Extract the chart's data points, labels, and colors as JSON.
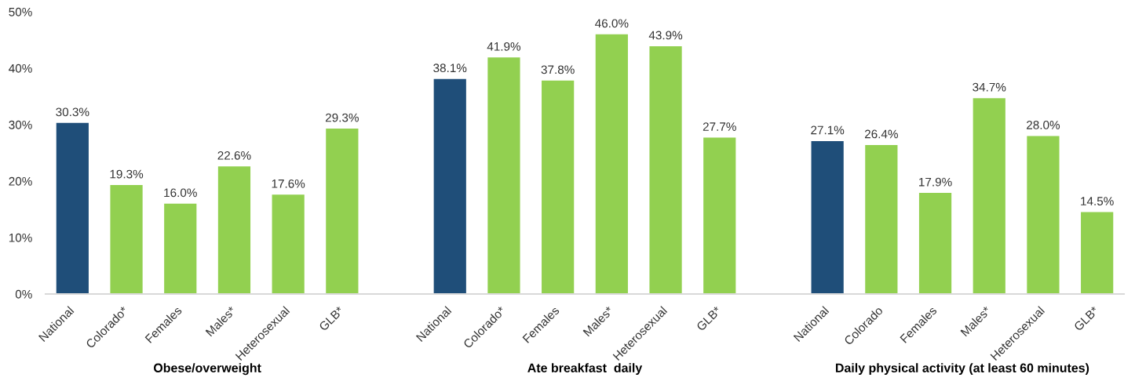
{
  "chart_data": [
    {
      "type": "bar",
      "xlabel": "Obese/overweight",
      "categories": [
        "National",
        "Colorado*",
        "Females",
        "Males*",
        "Heterosexual",
        "GLB*"
      ],
      "values": [
        30.3,
        19.3,
        16.0,
        22.6,
        17.6,
        29.3
      ],
      "colors": [
        "#1f4e79",
        "#92d050",
        "#92d050",
        "#92d050",
        "#92d050",
        "#92d050"
      ],
      "value_labels": [
        "30.3%",
        "19.3%",
        "16.0%",
        "22.6%",
        "17.6%",
        "29.3%"
      ],
      "ylim": [
        0,
        50
      ],
      "yticks": [
        {
          "value": 0,
          "label": "0%"
        },
        {
          "value": 10,
          "label": "10%"
        },
        {
          "value": 20,
          "label": "20%"
        },
        {
          "value": 30,
          "label": "30%"
        },
        {
          "value": 40,
          "label": "40%"
        },
        {
          "value": 50,
          "label": "50%"
        }
      ]
    },
    {
      "type": "bar",
      "xlabel": "Ate breakfast  daily",
      "categories": [
        "National",
        "Colorado*",
        "Females",
        "Males*",
        "Heterosexual",
        "GLB*"
      ],
      "values": [
        38.1,
        41.9,
        37.8,
        46.0,
        43.9,
        27.7
      ],
      "colors": [
        "#1f4e79",
        "#92d050",
        "#92d050",
        "#92d050",
        "#92d050",
        "#92d050"
      ],
      "value_labels": [
        "38.1%",
        "41.9%",
        "37.8%",
        "46.0%",
        "43.9%",
        "27.7%"
      ],
      "ylim": [
        0,
        50
      ],
      "tick_labels": "x"
    },
    {
      "type": "bar",
      "xlabel": "Daily physical activity (at least 60 minutes)",
      "categories": [
        "National",
        "Colorado",
        "Females",
        "Males*",
        "Heterosexual",
        "GLB*"
      ],
      "values": [
        27.1,
        26.4,
        17.9,
        34.7,
        28.0,
        14.5
      ],
      "colors": [
        "#1f4e79",
        "#92d050",
        "#92d050",
        "#92d050",
        "#92d050",
        "#92d050"
      ],
      "value_labels": [
        "27.1%",
        "26.4%",
        "17.9%",
        "34.7%",
        "28.0%",
        "14.5%"
      ],
      "ylim": [
        0,
        50
      ],
      "tick_labels": "x"
    }
  ]
}
